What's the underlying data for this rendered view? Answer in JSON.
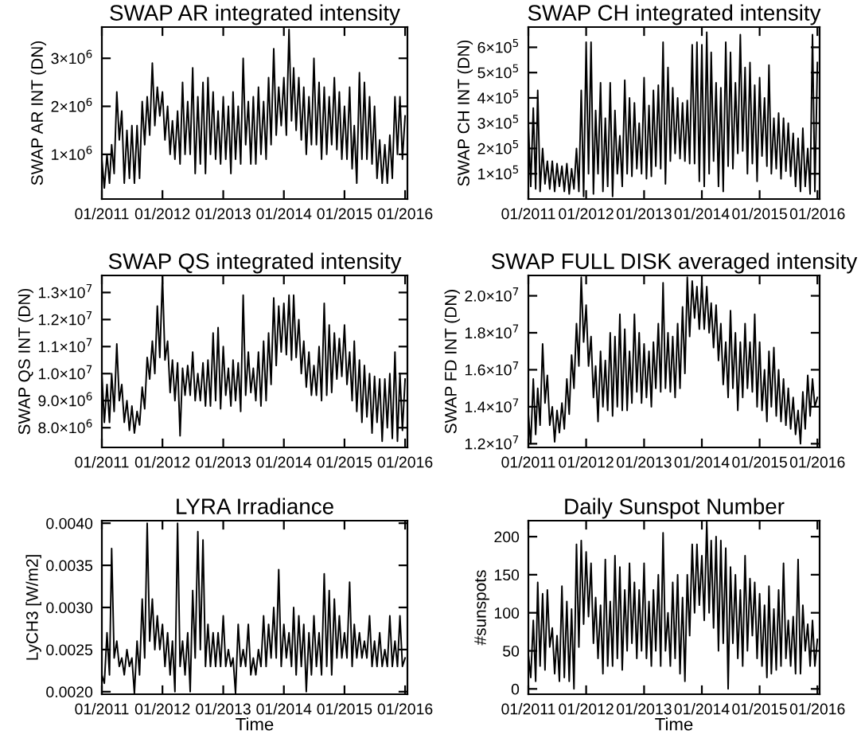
{
  "chart_data": [
    {
      "type": "line",
      "title": "SWAP AR integrated intensity",
      "ylabel": "SWAP AR INT (DN)",
      "xlim": [
        "2011-01-01",
        "2016-01-15"
      ],
      "xticks": [
        {
          "value": "2011-01-01",
          "label": "01/2011"
        },
        {
          "value": "2012-01-01",
          "label": "01/2012"
        },
        {
          "value": "2013-01-01",
          "label": "01/2013"
        },
        {
          "value": "2014-01-01",
          "label": "01/2014"
        },
        {
          "value": "2015-01-01",
          "label": "01/2015"
        },
        {
          "value": "2016-01-01",
          "label": "01/2016"
        }
      ],
      "ylim": [
        70000,
        3650000
      ],
      "yticks": [
        {
          "value": 1000000,
          "label": "1×10$^{6}$"
        },
        {
          "value": 2000000,
          "label": "2×10$^{6}$"
        },
        {
          "value": 3000000,
          "label": "3×10$^{6}$"
        }
      ],
      "x": [
        "2011-01-01",
        "2011-01-16",
        "2011-02-01",
        "2011-02-16",
        "2011-03-01",
        "2011-03-16",
        "2011-04-01",
        "2011-04-16",
        "2011-05-01",
        "2011-05-16",
        "2011-06-01",
        "2011-06-16",
        "2011-07-01",
        "2011-07-16",
        "2011-08-01",
        "2011-08-16",
        "2011-09-01",
        "2011-09-16",
        "2011-10-01",
        "2011-10-16",
        "2011-11-01",
        "2011-11-16",
        "2011-12-01",
        "2011-12-16",
        "2012-01-01",
        "2012-01-16",
        "2012-02-01",
        "2012-02-16",
        "2012-03-01",
        "2012-03-16",
        "2012-04-01",
        "2012-04-16",
        "2012-05-01",
        "2012-05-16",
        "2012-06-01",
        "2012-06-16",
        "2012-07-01",
        "2012-07-16",
        "2012-08-01",
        "2012-08-16",
        "2012-09-01",
        "2012-09-16",
        "2012-10-01",
        "2012-10-16",
        "2012-11-01",
        "2012-11-16",
        "2012-12-01",
        "2012-12-16",
        "2013-01-01",
        "2013-01-16",
        "2013-02-01",
        "2013-02-16",
        "2013-03-01",
        "2013-03-16",
        "2013-04-01",
        "2013-04-16",
        "2013-05-01",
        "2013-05-16",
        "2013-06-01",
        "2013-06-16",
        "2013-07-01",
        "2013-07-16",
        "2013-08-01",
        "2013-08-16",
        "2013-09-01",
        "2013-09-16",
        "2013-10-01",
        "2013-10-16",
        "2013-11-01",
        "2013-11-16",
        "2013-12-01",
        "2013-12-16",
        "2014-01-01",
        "2014-01-16",
        "2014-02-01",
        "2014-02-16",
        "2014-03-01",
        "2014-03-16",
        "2014-04-01",
        "2014-04-16",
        "2014-05-01",
        "2014-05-16",
        "2014-06-01",
        "2014-06-16",
        "2014-07-01",
        "2014-07-16",
        "2014-08-01",
        "2014-08-16",
        "2014-09-01",
        "2014-09-16",
        "2014-10-01",
        "2014-10-16",
        "2014-11-01",
        "2014-11-16",
        "2014-12-01",
        "2014-12-16",
        "2015-01-01",
        "2015-01-16",
        "2015-02-01",
        "2015-02-16",
        "2015-03-01",
        "2015-03-16",
        "2015-04-01",
        "2015-04-16",
        "2015-05-01",
        "2015-05-16",
        "2015-06-01",
        "2015-06-16",
        "2015-07-01",
        "2015-07-16",
        "2015-08-01",
        "2015-08-16",
        "2015-09-01",
        "2015-09-16",
        "2015-10-01",
        "2015-10-16",
        "2015-11-01",
        "2015-11-16",
        "2015-12-01",
        "2015-12-16",
        "2016-01-01"
      ],
      "series": [
        {
          "color": "#000000",
          "values": [
            900000,
            300000,
            1000000,
            400000,
            1200000,
            600000,
            2300000,
            1300000,
            1900000,
            400000,
            1500000,
            500000,
            1600000,
            400000,
            1600000,
            500000,
            2100000,
            1200000,
            2200000,
            1400000,
            2900000,
            1600000,
            2400000,
            1800000,
            2300000,
            1300000,
            2000000,
            1000000,
            1700000,
            900000,
            1900000,
            800000,
            2500000,
            1000000,
            2100000,
            1000000,
            2800000,
            600000,
            2200000,
            800000,
            2500000,
            600000,
            2600000,
            1000000,
            2300000,
            900000,
            1900000,
            800000,
            2200000,
            900000,
            2000000,
            600000,
            2300000,
            900000,
            2000000,
            800000,
            3000000,
            1200000,
            2100000,
            800000,
            2200000,
            800000,
            2400000,
            1000000,
            2100000,
            900000,
            2600000,
            1200000,
            3200000,
            1400000,
            2400000,
            1600000,
            2600000,
            1400000,
            3600000,
            1700000,
            2800000,
            1500000,
            2600000,
            1300000,
            2400000,
            1000000,
            2200000,
            1200000,
            3000000,
            1200000,
            2500000,
            900000,
            2400000,
            1000000,
            2200000,
            1200000,
            2600000,
            1100000,
            2300000,
            900000,
            2000000,
            900000,
            2400000,
            700000,
            1600000,
            400000,
            2700000,
            900000,
            2500000,
            900000,
            2200000,
            800000,
            2000000,
            500000,
            1300000,
            400000,
            1200000,
            400000,
            1400000,
            500000,
            2200000,
            1000000,
            2200000,
            900000,
            1800000
          ]
        }
      ]
    },
    {
      "type": "line",
      "title": "SWAP CH integrated intensity",
      "ylabel": "SWAP CH INT (DN)",
      "xlim": [
        "2011-01-01",
        "2016-01-15"
      ],
      "xticks": [
        {
          "value": "2011-01-01",
          "label": "01/2011"
        },
        {
          "value": "2012-01-01",
          "label": "01/2012"
        },
        {
          "value": "2013-01-01",
          "label": "01/2013"
        },
        {
          "value": "2014-01-01",
          "label": "01/2014"
        },
        {
          "value": "2015-01-01",
          "label": "01/2015"
        },
        {
          "value": "2016-01-01",
          "label": "01/2016"
        }
      ],
      "ylim": [
        0,
        680000
      ],
      "yticks": [
        {
          "value": 100000,
          "label": "1×10$^{5}$"
        },
        {
          "value": 200000,
          "label": "2×10$^{5}$"
        },
        {
          "value": 300000,
          "label": "3×10$^{5}$"
        },
        {
          "value": 400000,
          "label": "4×10$^{5}$"
        },
        {
          "value": 500000,
          "label": "5×10$^{5}$"
        },
        {
          "value": 600000,
          "label": "6×10$^{5}$"
        }
      ],
      "x": [
        "2011-01-01",
        "2011-01-16",
        "2011-02-01",
        "2011-02-16",
        "2011-03-01",
        "2011-03-16",
        "2011-04-01",
        "2011-04-16",
        "2011-05-01",
        "2011-05-16",
        "2011-06-01",
        "2011-06-16",
        "2011-07-01",
        "2011-07-16",
        "2011-08-01",
        "2011-08-16",
        "2011-09-01",
        "2011-09-16",
        "2011-10-01",
        "2011-10-16",
        "2011-11-01",
        "2011-11-16",
        "2011-12-01",
        "2011-12-16",
        "2012-01-01",
        "2012-01-16",
        "2012-02-01",
        "2012-02-16",
        "2012-03-01",
        "2012-03-16",
        "2012-04-01",
        "2012-04-16",
        "2012-05-01",
        "2012-05-16",
        "2012-06-01",
        "2012-06-16",
        "2012-07-01",
        "2012-07-16",
        "2012-08-01",
        "2012-08-16",
        "2012-09-01",
        "2012-09-16",
        "2012-10-01",
        "2012-10-16",
        "2012-11-01",
        "2012-11-16",
        "2012-12-01",
        "2012-12-16",
        "2013-01-01",
        "2013-01-16",
        "2013-02-01",
        "2013-02-16",
        "2013-03-01",
        "2013-03-16",
        "2013-04-01",
        "2013-04-16",
        "2013-05-01",
        "2013-05-16",
        "2013-06-01",
        "2013-06-16",
        "2013-07-01",
        "2013-07-16",
        "2013-08-01",
        "2013-08-16",
        "2013-09-01",
        "2013-09-16",
        "2013-10-01",
        "2013-10-16",
        "2013-11-01",
        "2013-11-16",
        "2013-12-01",
        "2013-12-16",
        "2014-01-01",
        "2014-01-16",
        "2014-02-01",
        "2014-02-16",
        "2014-03-01",
        "2014-03-16",
        "2014-04-01",
        "2014-04-16",
        "2014-05-01",
        "2014-05-16",
        "2014-06-01",
        "2014-06-16",
        "2014-07-01",
        "2014-07-16",
        "2014-08-01",
        "2014-08-16",
        "2014-09-01",
        "2014-09-16",
        "2014-10-01",
        "2014-10-16",
        "2014-11-01",
        "2014-11-16",
        "2014-12-01",
        "2014-12-16",
        "2015-01-01",
        "2015-01-16",
        "2015-02-01",
        "2015-02-16",
        "2015-03-01",
        "2015-03-16",
        "2015-04-01",
        "2015-04-16",
        "2015-05-01",
        "2015-05-16",
        "2015-06-01",
        "2015-06-16",
        "2015-07-01",
        "2015-07-16",
        "2015-08-01",
        "2015-08-16",
        "2015-09-01",
        "2015-09-16",
        "2015-10-01",
        "2015-10-16",
        "2015-11-01",
        "2015-11-16",
        "2015-12-01",
        "2015-12-16",
        "2016-01-01"
      ],
      "series": [
        {
          "color": "#000000",
          "values": [
            300000,
            50000,
            360000,
            40000,
            430000,
            30000,
            200000,
            60000,
            150000,
            40000,
            150000,
            30000,
            140000,
            50000,
            130000,
            30000,
            140000,
            20000,
            120000,
            40000,
            200000,
            30000,
            430000,
            10000,
            620000,
            100000,
            620000,
            20000,
            350000,
            100000,
            460000,
            30000,
            320000,
            50000,
            460000,
            10000,
            350000,
            100000,
            250000,
            50000,
            470000,
            100000,
            400000,
            90000,
            380000,
            120000,
            300000,
            100000,
            480000,
            80000,
            370000,
            90000,
            430000,
            130000,
            450000,
            120000,
            620000,
            60000,
            520000,
            150000,
            440000,
            180000,
            400000,
            160000,
            380000,
            150000,
            390000,
            140000,
            610000,
            140000,
            620000,
            70000,
            610000,
            50000,
            660000,
            100000,
            580000,
            150000,
            460000,
            50000,
            440000,
            30000,
            620000,
            130000,
            580000,
            120000,
            460000,
            180000,
            650000,
            190000,
            520000,
            100000,
            540000,
            140000,
            450000,
            70000,
            480000,
            170000,
            400000,
            130000,
            530000,
            100000,
            320000,
            120000,
            340000,
            80000,
            320000,
            110000,
            300000,
            90000,
            260000,
            50000,
            240000,
            30000,
            280000,
            50000,
            200000,
            20000,
            650000,
            30000,
            540000
          ]
        }
      ]
    },
    {
      "type": "line",
      "title": "SWAP QS integrated intensity",
      "ylabel": "SWAP QS INT (DN)",
      "xlim": [
        "2011-01-01",
        "2016-01-15"
      ],
      "xticks": [
        {
          "value": "2011-01-01",
          "label": "01/2011"
        },
        {
          "value": "2012-01-01",
          "label": "01/2012"
        },
        {
          "value": "2013-01-01",
          "label": "01/2013"
        },
        {
          "value": "2014-01-01",
          "label": "01/2014"
        },
        {
          "value": "2015-01-01",
          "label": "01/2015"
        },
        {
          "value": "2016-01-01",
          "label": "01/2016"
        }
      ],
      "ylim": [
        7270000,
        13630000
      ],
      "yticks": [
        {
          "value": 8000000,
          "label": "8.0×10$^{6}$"
        },
        {
          "value": 9000000,
          "label": "9.0×10$^{6}$"
        },
        {
          "value": 10000000,
          "label": "1.0×10$^{7}$"
        },
        {
          "value": 11000000,
          "label": "1.1×10$^{7}$"
        },
        {
          "value": 12000000,
          "label": "1.2×10$^{7}$"
        },
        {
          "value": 13000000,
          "label": "1.3×10$^{7}$"
        }
      ],
      "x": [
        "2011-01-01",
        "2011-01-16",
        "2011-02-01",
        "2011-02-16",
        "2011-03-01",
        "2011-03-16",
        "2011-04-01",
        "2011-04-16",
        "2011-05-01",
        "2011-05-16",
        "2011-06-01",
        "2011-06-16",
        "2011-07-01",
        "2011-07-16",
        "2011-08-01",
        "2011-08-16",
        "2011-09-01",
        "2011-09-16",
        "2011-10-01",
        "2011-10-16",
        "2011-11-01",
        "2011-11-16",
        "2011-12-01",
        "2011-12-16",
        "2012-01-01",
        "2012-01-16",
        "2012-02-01",
        "2012-02-16",
        "2012-03-01",
        "2012-03-16",
        "2012-04-01",
        "2012-04-16",
        "2012-05-01",
        "2012-05-16",
        "2012-06-01",
        "2012-06-16",
        "2012-07-01",
        "2012-07-16",
        "2012-08-01",
        "2012-08-16",
        "2012-09-01",
        "2012-09-16",
        "2012-10-01",
        "2012-10-16",
        "2012-11-01",
        "2012-11-16",
        "2012-12-01",
        "2012-12-16",
        "2013-01-01",
        "2013-01-16",
        "2013-02-01",
        "2013-02-16",
        "2013-03-01",
        "2013-03-16",
        "2013-04-01",
        "2013-04-16",
        "2013-05-01",
        "2013-05-16",
        "2013-06-01",
        "2013-06-16",
        "2013-07-01",
        "2013-07-16",
        "2013-08-01",
        "2013-08-16",
        "2013-09-01",
        "2013-09-16",
        "2013-10-01",
        "2013-10-16",
        "2013-11-01",
        "2013-11-16",
        "2013-12-01",
        "2013-12-16",
        "2014-01-01",
        "2014-01-16",
        "2014-02-01",
        "2014-02-16",
        "2014-03-01",
        "2014-03-16",
        "2014-04-01",
        "2014-04-16",
        "2014-05-01",
        "2014-05-16",
        "2014-06-01",
        "2014-06-16",
        "2014-07-01",
        "2014-07-16",
        "2014-08-01",
        "2014-08-16",
        "2014-09-01",
        "2014-09-16",
        "2014-10-01",
        "2014-10-16",
        "2014-11-01",
        "2014-11-16",
        "2014-12-01",
        "2014-12-16",
        "2015-01-01",
        "2015-01-16",
        "2015-02-01",
        "2015-02-16",
        "2015-03-01",
        "2015-03-16",
        "2015-04-01",
        "2015-04-16",
        "2015-05-01",
        "2015-05-16",
        "2015-06-01",
        "2015-06-16",
        "2015-07-01",
        "2015-07-16",
        "2015-08-01",
        "2015-08-16",
        "2015-09-01",
        "2015-09-16",
        "2015-10-01",
        "2015-10-16",
        "2015-11-01",
        "2015-11-16",
        "2015-12-01",
        "2015-12-16",
        "2016-01-01"
      ],
      "series": [
        {
          "color": "#000000",
          "values": [
            10000000,
            8200000,
            9600000,
            8200000,
            10000000,
            8600000,
            11100000,
            9000000,
            9600000,
            8200000,
            9000000,
            7900000,
            8800000,
            7800000,
            8600000,
            8100000,
            9500000,
            8700000,
            10600000,
            9800000,
            11200000,
            10000000,
            12500000,
            10600000,
            13600000,
            10500000,
            11200000,
            9300000,
            10500000,
            9000000,
            10400000,
            7700000,
            10200000,
            9200000,
            10300000,
            9200000,
            10800000,
            9000000,
            10000000,
            9000000,
            10400000,
            8800000,
            10500000,
            8800000,
            11500000,
            9000000,
            11700000,
            8700000,
            11000000,
            9200000,
            10200000,
            8800000,
            10500000,
            9000000,
            10400000,
            8600000,
            12900000,
            9200000,
            10800000,
            9300000,
            10200000,
            9000000,
            10800000,
            8800000,
            11200000,
            9000000,
            11500000,
            9600000,
            12800000,
            10300000,
            12500000,
            10800000,
            12600000,
            10700000,
            12900000,
            10500000,
            12900000,
            10600000,
            12000000,
            10000000,
            11200000,
            9500000,
            10800000,
            9200000,
            10300000,
            9200000,
            11000000,
            9000000,
            12600000,
            9200000,
            11800000,
            9300000,
            11500000,
            9800000,
            11300000,
            9900000,
            11800000,
            9600000,
            10800000,
            9000000,
            11200000,
            8600000,
            10500000,
            8200000,
            10300000,
            8400000,
            10000000,
            7800000,
            9900000,
            8200000,
            9800000,
            7500000,
            9800000,
            8000000,
            10000000,
            7600000,
            10800000,
            7500000,
            10000000,
            7900000,
            9800000
          ]
        }
      ]
    },
    {
      "type": "line",
      "title": "SWAP FULL DISK averaged intensity",
      "ylabel": "SWAP FD INT (DN)",
      "xlim": [
        "2011-01-01",
        "2016-01-15"
      ],
      "xticks": [
        {
          "value": "2011-01-01",
          "label": "01/2011"
        },
        {
          "value": "2012-01-01",
          "label": "01/2012"
        },
        {
          "value": "2013-01-01",
          "label": "01/2013"
        },
        {
          "value": "2014-01-01",
          "label": "01/2014"
        },
        {
          "value": "2015-01-01",
          "label": "01/2015"
        },
        {
          "value": "2016-01-01",
          "label": "01/2016"
        }
      ],
      "ylim": [
        11800000,
        21100000
      ],
      "yticks": [
        {
          "value": 12000000,
          "label": "1.2×10$^{7}$"
        },
        {
          "value": 14000000,
          "label": "1.4×10$^{7}$"
        },
        {
          "value": 16000000,
          "label": "1.6×10$^{7}$"
        },
        {
          "value": 18000000,
          "label": "1.8×10$^{7}$"
        },
        {
          "value": 20000000,
          "label": "2.0×10$^{7}$"
        }
      ],
      "x": [
        "2011-01-01",
        "2011-01-16",
        "2011-02-01",
        "2011-02-16",
        "2011-03-01",
        "2011-03-16",
        "2011-04-01",
        "2011-04-16",
        "2011-05-01",
        "2011-05-16",
        "2011-06-01",
        "2011-06-16",
        "2011-07-01",
        "2011-07-16",
        "2011-08-01",
        "2011-08-16",
        "2011-09-01",
        "2011-09-16",
        "2011-10-01",
        "2011-10-16",
        "2011-11-01",
        "2011-11-16",
        "2011-12-01",
        "2011-12-16",
        "2012-01-01",
        "2012-01-16",
        "2012-02-01",
        "2012-02-16",
        "2012-03-01",
        "2012-03-16",
        "2012-04-01",
        "2012-04-16",
        "2012-05-01",
        "2012-05-16",
        "2012-06-01",
        "2012-06-16",
        "2012-07-01",
        "2012-07-16",
        "2012-08-01",
        "2012-08-16",
        "2012-09-01",
        "2012-09-16",
        "2012-10-01",
        "2012-10-16",
        "2012-11-01",
        "2012-11-16",
        "2012-12-01",
        "2012-12-16",
        "2013-01-01",
        "2013-01-16",
        "2013-02-01",
        "2013-02-16",
        "2013-03-01",
        "2013-03-16",
        "2013-04-01",
        "2013-04-16",
        "2013-05-01",
        "2013-05-16",
        "2013-06-01",
        "2013-06-16",
        "2013-07-01",
        "2013-07-16",
        "2013-08-01",
        "2013-08-16",
        "2013-09-01",
        "2013-09-16",
        "2013-10-01",
        "2013-10-16",
        "2013-11-01",
        "2013-11-16",
        "2013-12-01",
        "2013-12-16",
        "2014-01-01",
        "2014-01-16",
        "2014-02-01",
        "2014-02-16",
        "2014-03-01",
        "2014-03-16",
        "2014-04-01",
        "2014-04-16",
        "2014-05-01",
        "2014-05-16",
        "2014-06-01",
        "2014-06-16",
        "2014-07-01",
        "2014-07-16",
        "2014-08-01",
        "2014-08-16",
        "2014-09-01",
        "2014-09-16",
        "2014-10-01",
        "2014-10-16",
        "2014-11-01",
        "2014-11-16",
        "2014-12-01",
        "2014-12-16",
        "2015-01-01",
        "2015-01-16",
        "2015-02-01",
        "2015-02-16",
        "2015-03-01",
        "2015-03-16",
        "2015-04-01",
        "2015-04-16",
        "2015-05-01",
        "2015-05-16",
        "2015-06-01",
        "2015-06-16",
        "2015-07-01",
        "2015-07-16",
        "2015-08-01",
        "2015-08-16",
        "2015-09-01",
        "2015-09-16",
        "2015-10-01",
        "2015-10-16",
        "2015-11-01",
        "2015-11-16",
        "2015-12-01",
        "2015-12-16",
        "2016-01-01"
      ],
      "series": [
        {
          "color": "#000000",
          "values": [
            13600000,
            12000000,
            15500000,
            12500000,
            15000000,
            13000000,
            17400000,
            14200000,
            15700000,
            13000000,
            14000000,
            12100000,
            13800000,
            12600000,
            14200000,
            12800000,
            15500000,
            13600000,
            16800000,
            15000000,
            18500000,
            16200000,
            21000000,
            17500000,
            19500000,
            16200000,
            17800000,
            14500000,
            16200000,
            13200000,
            17000000,
            14000000,
            16500000,
            13800000,
            18000000,
            13500000,
            17800000,
            14000000,
            19000000,
            13800000,
            18200000,
            13800000,
            17000000,
            14200000,
            19000000,
            14800000,
            18000000,
            14200000,
            17400000,
            14500000,
            17000000,
            14000000,
            17500000,
            15000000,
            18500000,
            14800000,
            20700000,
            15000000,
            18000000,
            14800000,
            17800000,
            14500000,
            18500000,
            15000000,
            19400000,
            15800000,
            21000000,
            17800000,
            20800000,
            18800000,
            20500000,
            18200000,
            20800000,
            18200000,
            20500000,
            18000000,
            19600000,
            17200000,
            19500000,
            16500000,
            18500000,
            15200000,
            17500000,
            14500000,
            19200000,
            15000000,
            18000000,
            13800000,
            17500000,
            14500000,
            18500000,
            15000000,
            17500000,
            14800000,
            19000000,
            14000000,
            17500000,
            13800000,
            16000000,
            13200000,
            17000000,
            14000000,
            17200000,
            13500000,
            16000000,
            13200000,
            15500000,
            13000000,
            15000000,
            12800000,
            14500000,
            12500000,
            13800000,
            12000000,
            14800000,
            12800000,
            15700000,
            13500000,
            15500000,
            14000000,
            14500000
          ]
        }
      ]
    },
    {
      "type": "line",
      "title": "LYRA Irradiance",
      "xlabel": "Time",
      "ylabel": "LyCH3 [W/m2]",
      "xlim": [
        "2011-01-01",
        "2016-01-15"
      ],
      "xticks": [
        {
          "value": "2011-01-01",
          "label": "01/2011"
        },
        {
          "value": "2012-01-01",
          "label": "01/2012"
        },
        {
          "value": "2013-01-01",
          "label": "01/2013"
        },
        {
          "value": "2014-01-01",
          "label": "01/2014"
        },
        {
          "value": "2015-01-01",
          "label": "01/2015"
        },
        {
          "value": "2016-01-01",
          "label": "01/2016"
        }
      ],
      "ylim": [
        0.00197,
        0.00403
      ],
      "yticks": [
        {
          "value": 0.002,
          "label": "0.0020"
        },
        {
          "value": 0.0025,
          "label": "0.0025"
        },
        {
          "value": 0.003,
          "label": "0.0030"
        },
        {
          "value": 0.0035,
          "label": "0.0035"
        },
        {
          "value": 0.004,
          "label": "0.0040"
        }
      ],
      "x": [
        "2011-01-01",
        "2011-01-16",
        "2011-02-01",
        "2011-02-16",
        "2011-03-01",
        "2011-03-16",
        "2011-04-01",
        "2011-04-16",
        "2011-05-01",
        "2011-05-16",
        "2011-06-01",
        "2011-06-16",
        "2011-07-01",
        "2011-07-16",
        "2011-08-01",
        "2011-08-16",
        "2011-09-01",
        "2011-09-16",
        "2011-10-01",
        "2011-10-16",
        "2011-11-01",
        "2011-11-16",
        "2011-12-01",
        "2011-12-16",
        "2012-01-01",
        "2012-01-16",
        "2012-02-01",
        "2012-02-16",
        "2012-03-01",
        "2012-03-16",
        "2012-04-01",
        "2012-04-16",
        "2012-05-01",
        "2012-05-16",
        "2012-06-01",
        "2012-06-16",
        "2012-07-01",
        "2012-07-16",
        "2012-08-01",
        "2012-08-16",
        "2012-09-01",
        "2012-09-16",
        "2012-10-01",
        "2012-10-16",
        "2012-11-01",
        "2012-11-16",
        "2012-12-01",
        "2012-12-16",
        "2013-01-01",
        "2013-01-16",
        "2013-02-01",
        "2013-02-16",
        "2013-03-01",
        "2013-03-16",
        "2013-04-01",
        "2013-04-16",
        "2013-05-01",
        "2013-05-16",
        "2013-06-01",
        "2013-06-16",
        "2013-07-01",
        "2013-07-16",
        "2013-08-01",
        "2013-08-16",
        "2013-09-01",
        "2013-09-16",
        "2013-10-01",
        "2013-10-16",
        "2013-11-01",
        "2013-11-16",
        "2013-12-01",
        "2013-12-16",
        "2014-01-01",
        "2014-01-16",
        "2014-02-01",
        "2014-02-16",
        "2014-03-01",
        "2014-03-16",
        "2014-04-01",
        "2014-04-16",
        "2014-05-01",
        "2014-05-16",
        "2014-06-01",
        "2014-06-16",
        "2014-07-01",
        "2014-07-16",
        "2014-08-01",
        "2014-08-16",
        "2014-09-01",
        "2014-09-16",
        "2014-10-01",
        "2014-10-16",
        "2014-11-01",
        "2014-11-16",
        "2014-12-01",
        "2014-12-16",
        "2015-01-01",
        "2015-01-16",
        "2015-02-01",
        "2015-02-16",
        "2015-03-01",
        "2015-03-16",
        "2015-04-01",
        "2015-04-16",
        "2015-05-01",
        "2015-05-16",
        "2015-06-01",
        "2015-06-16",
        "2015-07-01",
        "2015-07-16",
        "2015-08-01",
        "2015-08-16",
        "2015-09-01",
        "2015-09-16",
        "2015-10-01",
        "2015-10-16",
        "2015-11-01",
        "2015-11-16",
        "2015-12-01",
        "2015-12-16",
        "2016-01-01"
      ],
      "series": [
        {
          "color": "#000000",
          "values": [
            0.0022,
            0.0021,
            0.0027,
            0.0022,
            0.0037,
            0.0024,
            0.0026,
            0.0023,
            0.0024,
            0.0022,
            0.0025,
            0.0023,
            0.0024,
            0.00198,
            0.0026,
            0.0022,
            0.0031,
            0.0024,
            0.004,
            0.0026,
            0.0031,
            0.0025,
            0.0029,
            0.0025,
            0.0028,
            0.0023,
            0.0027,
            0.0022,
            0.0026,
            0.002,
            0.004,
            0.0023,
            0.0026,
            0.0022,
            0.0027,
            0.002,
            0.0032,
            0.0024,
            0.0039,
            0.0025,
            0.0038,
            0.0023,
            0.0028,
            0.0023,
            0.0027,
            0.0023,
            0.0027,
            0.0023,
            0.0029,
            0.0023,
            0.0025,
            0.0023,
            0.0024,
            0.00198,
            0.0028,
            0.0023,
            0.0025,
            0.0023,
            0.0028,
            0.0022,
            0.0024,
            0.0022,
            0.0025,
            0.0023,
            0.0029,
            0.0023,
            0.0028,
            0.0024,
            0.003,
            0.0024,
            0.00345,
            0.0023,
            0.0028,
            0.0024,
            0.0027,
            0.0023,
            0.003,
            0.0022,
            0.0029,
            0.0023,
            0.0028,
            0.002,
            0.0027,
            0.0022,
            0.0029,
            0.0023,
            0.0027,
            0.0022,
            0.0034,
            0.0023,
            0.0032,
            0.0022,
            0.0031,
            0.0024,
            0.0029,
            0.0024,
            0.0027,
            0.0024,
            0.0033,
            0.0023,
            0.0028,
            0.0024,
            0.0027,
            0.0024,
            0.0026,
            0.0024,
            0.0029,
            0.0023,
            0.0026,
            0.0023,
            0.0027,
            0.0023,
            0.0025,
            0.0023,
            0.0029,
            0.0023,
            0.0026,
            0.0023,
            0.0029,
            0.0023,
            0.0024
          ]
        }
      ]
    },
    {
      "type": "line",
      "title": "Daily Sunspot Number",
      "xlabel": "Time",
      "ylabel": "#sunspots",
      "xlim": [
        "2011-01-01",
        "2016-01-15"
      ],
      "xticks": [
        {
          "value": "2011-01-01",
          "label": "01/2011"
        },
        {
          "value": "2012-01-01",
          "label": "01/2012"
        },
        {
          "value": "2013-01-01",
          "label": "01/2013"
        },
        {
          "value": "2014-01-01",
          "label": "01/2014"
        },
        {
          "value": "2015-01-01",
          "label": "01/2015"
        },
        {
          "value": "2016-01-01",
          "label": "01/2016"
        }
      ],
      "ylim": [
        -7,
        221
      ],
      "yticks": [
        0,
        50,
        100,
        150,
        200
      ],
      "x": [
        "2011-01-01",
        "2011-01-16",
        "2011-02-01",
        "2011-02-16",
        "2011-03-01",
        "2011-03-16",
        "2011-04-01",
        "2011-04-16",
        "2011-05-01",
        "2011-05-16",
        "2011-06-01",
        "2011-06-16",
        "2011-07-01",
        "2011-07-16",
        "2011-08-01",
        "2011-08-16",
        "2011-09-01",
        "2011-09-16",
        "2011-10-01",
        "2011-10-16",
        "2011-11-01",
        "2011-11-16",
        "2011-12-01",
        "2011-12-16",
        "2012-01-01",
        "2012-01-16",
        "2012-02-01",
        "2012-02-16",
        "2012-03-01",
        "2012-03-16",
        "2012-04-01",
        "2012-04-16",
        "2012-05-01",
        "2012-05-16",
        "2012-06-01",
        "2012-06-16",
        "2012-07-01",
        "2012-07-16",
        "2012-08-01",
        "2012-08-16",
        "2012-09-01",
        "2012-09-16",
        "2012-10-01",
        "2012-10-16",
        "2012-11-01",
        "2012-11-16",
        "2012-12-01",
        "2012-12-16",
        "2013-01-01",
        "2013-01-16",
        "2013-02-01",
        "2013-02-16",
        "2013-03-01",
        "2013-03-16",
        "2013-04-01",
        "2013-04-16",
        "2013-05-01",
        "2013-05-16",
        "2013-06-01",
        "2013-06-16",
        "2013-07-01",
        "2013-07-16",
        "2013-08-01",
        "2013-08-16",
        "2013-09-01",
        "2013-09-16",
        "2013-10-01",
        "2013-10-16",
        "2013-11-01",
        "2013-11-16",
        "2013-12-01",
        "2013-12-16",
        "2014-01-01",
        "2014-01-16",
        "2014-02-01",
        "2014-02-16",
        "2014-03-01",
        "2014-03-16",
        "2014-04-01",
        "2014-04-16",
        "2014-05-01",
        "2014-05-16",
        "2014-06-01",
        "2014-06-16",
        "2014-07-01",
        "2014-07-16",
        "2014-08-01",
        "2014-08-16",
        "2014-09-01",
        "2014-09-16",
        "2014-10-01",
        "2014-10-16",
        "2014-11-01",
        "2014-11-16",
        "2014-12-01",
        "2014-12-16",
        "2015-01-01",
        "2015-01-16",
        "2015-02-01",
        "2015-02-16",
        "2015-03-01",
        "2015-03-16",
        "2015-04-01",
        "2015-04-16",
        "2015-05-01",
        "2015-05-16",
        "2015-06-01",
        "2015-06-16",
        "2015-07-01",
        "2015-07-16",
        "2015-08-01",
        "2015-08-16",
        "2015-09-01",
        "2015-09-16",
        "2015-10-01",
        "2015-10-16",
        "2015-11-01",
        "2015-11-16",
        "2015-12-01",
        "2015-12-16",
        "2016-01-01"
      ],
      "series": [
        {
          "color": "#000000",
          "values": [
            45,
            15,
            90,
            10,
            140,
            30,
            125,
            25,
            130,
            55,
            80,
            20,
            70,
            10,
            135,
            15,
            115,
            10,
            105,
            0,
            190,
            55,
            195,
            85,
            180,
            95,
            165,
            60,
            120,
            40,
            110,
            20,
            170,
            30,
            115,
            30,
            175,
            40,
            160,
            25,
            130,
            50,
            165,
            60,
            140,
            40,
            130,
            50,
            165,
            40,
            115,
            30,
            130,
            50,
            150,
            30,
            205,
            50,
            100,
            30,
            140,
            40,
            150,
            20,
            120,
            10,
            150,
            70,
            190,
            100,
            190,
            110,
            175,
            90,
            220,
            100,
            195,
            80,
            200,
            50,
            195,
            60,
            185,
            0,
            160,
            60,
            150,
            40,
            130,
            30,
            175,
            50,
            145,
            70,
            140,
            40,
            125,
            30,
            110,
            15,
            135,
            20,
            105,
            25,
            130,
            30,
            165,
            40,
            90,
            30,
            95,
            20,
            170,
            20,
            110,
            50,
            85,
            30,
            90,
            30,
            65
          ]
        }
      ]
    }
  ]
}
